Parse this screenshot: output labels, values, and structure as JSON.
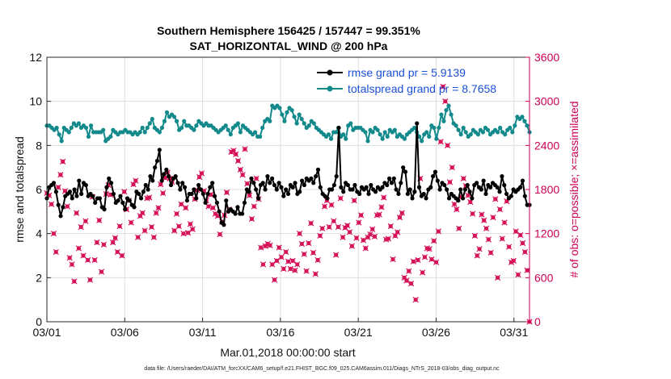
{
  "chart_data": {
    "type": "line",
    "title_line1": "Southern Hemisphere 156425 / 157447 = 99.351%",
    "title_line2": "SAT_HORIZONTAL_WIND @ 200 hPa",
    "xlabel": "Mar.01,2018 00:00:00 start",
    "ylabel_left": "rmse and totalspread",
    "ylabel_right": "# of obs: o=possible; ×=assimilated",
    "footer": "data file: /Users/raeder/DAI/ATM_forcXX/CAM6_setup/f.e21.FHIST_BGC.f09_025.CAM6assim.011/Diags_NTrS_2018-03/obs_diag_output.nc",
    "xlim": [
      1,
      32
    ],
    "x_ticks": [
      1,
      6,
      11,
      16,
      21,
      26,
      31
    ],
    "x_tick_labels": [
      "03/01",
      "03/06",
      "03/11",
      "03/16",
      "03/21",
      "03/26",
      "03/31"
    ],
    "ylim_left": [
      0,
      12
    ],
    "y_ticks_left": [
      "0",
      "2",
      "4",
      "6",
      "8",
      "10",
      "12"
    ],
    "ylim_right": [
      0,
      3600
    ],
    "y_ticks_right": [
      "0",
      "600",
      "1200",
      "1800",
      "2400",
      "3000",
      "3600"
    ],
    "grid": true,
    "legend_position": "top-right",
    "colors": {
      "rmse": "#000000",
      "spread": "#12898a",
      "obs": "#d6145a",
      "right_axis": "#cc0055",
      "legend_text": "#1a4fd8"
    },
    "series": [
      {
        "name": "rmse grand pr = 5.9139",
        "color": "#000000",
        "marker": "filled-circle",
        "values": [
          5.6,
          6.1,
          6.2,
          6.3,
          5.9,
          5.3,
          4.8,
          5.2,
          5.7,
          5.8,
          5.9,
          5.6,
          6.0,
          5.7,
          6.4,
          5.8,
          6.3,
          6.2,
          5.7,
          5.8,
          5.7,
          5.4,
          5.6,
          5.6,
          5.2,
          5.1,
          6.1,
          6.5,
          6.3,
          5.8,
          5.4,
          5.5,
          5.7,
          5.4,
          5.1,
          5.6,
          5.5,
          5.3,
          5.2,
          5.9,
          5.8,
          5.6,
          5.9,
          6.2,
          6.0,
          6.6,
          6.4,
          7.0,
          7.3,
          7.8,
          6.4,
          6.7,
          6.9,
          6.6,
          6.2,
          6.5,
          6.6,
          6.3,
          6.0,
          6.3,
          6.1,
          5.5,
          5.8,
          5.8,
          6.0,
          5.6,
          6.2,
          6.0,
          5.8,
          5.4,
          5.8,
          6.1,
          6.3,
          5.7,
          5.4,
          5.0,
          4.5,
          4.4,
          5.5,
          5.0,
          5.1,
          5.0,
          4.9,
          5.2,
          4.9,
          4.9,
          5.4,
          6.0,
          5.9,
          6.5,
          6.3,
          6.0,
          5.6,
          6.2,
          6.3,
          6.0,
          6.6,
          6.3,
          6.5,
          6.2,
          6.0,
          6.3,
          6.1,
          5.7,
          6.0,
          5.8,
          6.2,
          6.1,
          6.3,
          5.8,
          5.9,
          6.4,
          6.2,
          6.5,
          6.4,
          6.5,
          6.3,
          6.6,
          6.9,
          6.1,
          5.8,
          5.7,
          5.6,
          6.0,
          6.0,
          6.2,
          6.6,
          8.8,
          6.1,
          5.9,
          6.3,
          6.2,
          6.0,
          6.0,
          6.2,
          5.9,
          5.8,
          6.1,
          6.0,
          6.1,
          5.8,
          6.2,
          6.0,
          5.9,
          6.1,
          6.0,
          6.1,
          6.3,
          6.2,
          6.5,
          6.3,
          6.5,
          6.0,
          5.8,
          6.3,
          7.0,
          6.8,
          5.8,
          6.0,
          5.6,
          5.9,
          9.0,
          6.1,
          5.7,
          5.8,
          5.6,
          6.0,
          6.1,
          6.6,
          6.8,
          6.4,
          6.0,
          6.3,
          6.2,
          6.0,
          5.6,
          5.8,
          5.7,
          5.6,
          5.5,
          6.0,
          5.6,
          6.0,
          6.2,
          5.9,
          5.6,
          6.2,
          6.3,
          6.1,
          6.0,
          6.4,
          5.8,
          6.2,
          6.1,
          6.3,
          6.2,
          6.1,
          5.9,
          6.6,
          6.2,
          5.8,
          5.6,
          5.7,
          6.0,
          5.9,
          6.0,
          6.1,
          6.4,
          5.7,
          5.3,
          5.3
        ]
      },
      {
        "name": "totalspread grand pr = 8.7658",
        "color": "#12898a",
        "marker": "filled-circle",
        "values": [
          8.9,
          8.9,
          8.8,
          8.7,
          8.8,
          8.5,
          8.2,
          8.8,
          8.7,
          8.6,
          8.8,
          9.0,
          8.9,
          9.0,
          8.8,
          8.9,
          8.8,
          8.4,
          8.9,
          8.6,
          8.6,
          8.6,
          8.6,
          8.7,
          8.2,
          8.3,
          8.4,
          8.7,
          8.6,
          8.5,
          8.6,
          8.6,
          8.7,
          8.6,
          8.6,
          8.5,
          8.6,
          8.5,
          8.6,
          8.8,
          8.6,
          8.8,
          9.0,
          9.2,
          8.8,
          8.7,
          8.6,
          8.8,
          9.1,
          9.5,
          9.3,
          9.4,
          9.3,
          9.1,
          8.7,
          8.8,
          9.1,
          8.9,
          8.9,
          8.8,
          8.7,
          8.9,
          9.1,
          9.0,
          8.9,
          9.0,
          8.9,
          8.9,
          8.8,
          8.7,
          8.6,
          8.7,
          8.8,
          8.9,
          8.7,
          8.5,
          8.8,
          8.9,
          9.0,
          8.6,
          8.9,
          8.8,
          8.7,
          8.6,
          8.5,
          8.6,
          8.4,
          8.4,
          8.8,
          9.1,
          9.2,
          9.1,
          9.8,
          9.7,
          9.8,
          9.7,
          9.4,
          9.1,
          9.5,
          9.7,
          9.6,
          9.3,
          9.0,
          9.4,
          9.2,
          9.0,
          8.8,
          8.9,
          9.1,
          9.0,
          8.8,
          8.7,
          8.6,
          8.5,
          8.4,
          8.5,
          8.3,
          8.6,
          8.6,
          8.8,
          8.4,
          8.5,
          8.3,
          8.9,
          9.0,
          8.7,
          8.8,
          8.8,
          8.8,
          8.7,
          8.6,
          8.2,
          8.7,
          8.6,
          8.8,
          8.7,
          8.5,
          8.3,
          8.6,
          8.4,
          8.7,
          8.6,
          8.7,
          8.4,
          8.5,
          8.4,
          8.3,
          8.5,
          8.6,
          8.7,
          8.8,
          8.6,
          8.4,
          8.2,
          8.5,
          8.6,
          8.4,
          8.9,
          8.8,
          8.3,
          8.8,
          9.4,
          9.1,
          9.6,
          9.8,
          9.4,
          9.0,
          8.9,
          8.7,
          8.5,
          8.8,
          8.6,
          8.4,
          8.5,
          8.7,
          8.6,
          8.5,
          8.7,
          8.6,
          8.8,
          8.7,
          8.5,
          8.6,
          8.7,
          8.6,
          8.8,
          8.6,
          8.5,
          8.7,
          8.8,
          8.6,
          8.9,
          9.3,
          9.2,
          9.3,
          9.1,
          8.9,
          8.6
        ]
      }
    ],
    "obs_assimilated_values": [
      1750,
      1720,
      1600,
      1200,
      950,
      1830,
      2000,
      2180,
      1780,
      1570,
      870,
      780,
      550,
      1480,
      1000,
      1290,
      900,
      1370,
      840,
      570,
      1700,
      840,
      1080,
      1380,
      680,
      1050,
      1740,
      1860,
      1730,
      1080,
      1140,
      950,
      1300,
      900,
      1770,
      1530,
      1650,
      1350,
      1870,
      1920,
      1150,
      1440,
      1480,
      1240,
      1680,
      1690,
      1290,
      1150,
      1480,
      1550,
      1870,
      1750,
      1960,
      2030,
      1950,
      1900,
      1240,
      1470,
      1300,
      1600,
      1200,
      1550,
      1210,
      1330,
      1260,
      1670,
      1790,
      1970,
      2020,
      1780,
      1650,
      1570,
      1730,
      1550,
      1470,
      1440,
      1190,
      1360,
      1450,
      1760,
      1530,
      2310,
      2330,
      2280,
      2190,
      2070,
      2000,
      2350,
      1880,
      1720,
      1400,
      1570,
      1950,
      1670,
      1010,
      780,
      1030,
      1060,
      1040,
      780,
      570,
      830,
      1010,
      880,
      720,
      950,
      820,
      720,
      830,
      700,
      780,
      1200,
      1060,
      920,
      690,
      1070,
      1340,
      940,
      650,
      840,
      1170,
      1270,
      1570,
      1650,
      1290,
      1590,
      1370,
      910,
      1290,
      1680,
      1150,
      1280,
      1310,
      1220,
      1030,
      1650,
      1140,
      1350,
      1450,
      1110,
      1000,
      1150,
      1190,
      1260,
      1160,
      1450,
      1460,
      1560,
      1690,
      1120,
      1130,
      1300,
      850,
      1170,
      1220,
      1420,
      1480,
      600,
      560,
      690,
      520,
      820,
      300,
      840,
      1950,
      670,
      880,
      1000,
      990,
      850,
      1100,
      810,
      1230,
      2450,
      3200,
      3000,
      2400,
      1900,
      2100,
      1600,
      1530,
      1270,
      1700,
      1950,
      1850,
      1720,
      1630,
      1470,
      1170,
      900,
      990,
      1460,
      1380,
      1270,
      1120,
      940,
      1420,
      1670,
      600,
      1530,
      1130,
      1350,
      1640,
      1020,
      810,
      830,
      1230,
      640,
      1180,
      1070,
      950,
      700,
      0
    ]
  }
}
